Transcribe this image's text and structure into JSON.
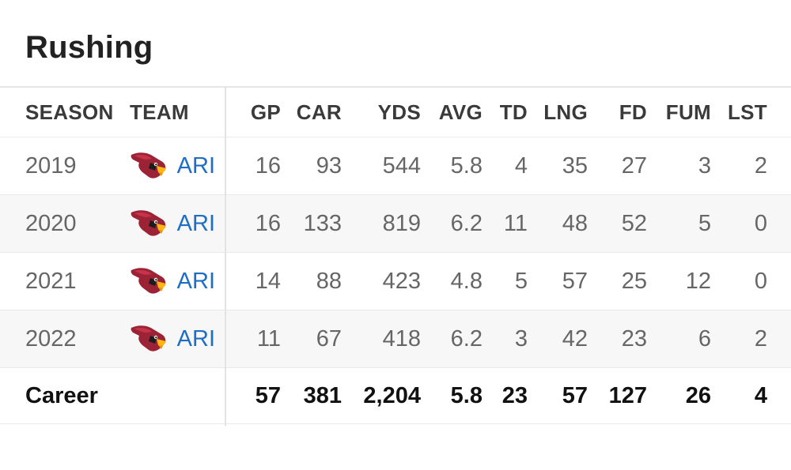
{
  "section": {
    "title": "Rushing"
  },
  "columns": {
    "season": "SEASON",
    "team": "TEAM",
    "gp": "GP",
    "car": "CAR",
    "yds": "YDS",
    "avg": "AVG",
    "td": "TD",
    "lng": "LNG",
    "fd": "FD",
    "fum": "FUM",
    "lst": "LST"
  },
  "rows": [
    {
      "season": "2019",
      "team": "ARI",
      "team_logo": "cardinal-head-icon",
      "gp": "16",
      "car": "93",
      "yds": "544",
      "avg": "5.8",
      "td": "4",
      "lng": "35",
      "fd": "27",
      "fum": "3",
      "lst": "2"
    },
    {
      "season": "2020",
      "team": "ARI",
      "team_logo": "cardinal-head-icon",
      "gp": "16",
      "car": "133",
      "yds": "819",
      "avg": "6.2",
      "td": "11",
      "lng": "48",
      "fd": "52",
      "fum": "5",
      "lst": "0"
    },
    {
      "season": "2021",
      "team": "ARI",
      "team_logo": "cardinal-head-icon",
      "gp": "14",
      "car": "88",
      "yds": "423",
      "avg": "4.8",
      "td": "5",
      "lng": "57",
      "fd": "25",
      "fum": "12",
      "lst": "0"
    },
    {
      "season": "2022",
      "team": "ARI",
      "team_logo": "cardinal-head-icon",
      "gp": "11",
      "car": "67",
      "yds": "418",
      "avg": "6.2",
      "td": "3",
      "lng": "42",
      "fd": "23",
      "fum": "6",
      "lst": "2"
    }
  ],
  "career": {
    "label": "Career",
    "gp": "57",
    "car": "381",
    "yds": "2,204",
    "avg": "5.8",
    "td": "23",
    "lng": "57",
    "fd": "127",
    "fum": "26",
    "lst": "4"
  },
  "colors": {
    "team_link": "#1e6fc4",
    "logo_red": "#9b2335",
    "logo_yellow": "#ffb612",
    "alt_row": "#f7f7f7"
  }
}
